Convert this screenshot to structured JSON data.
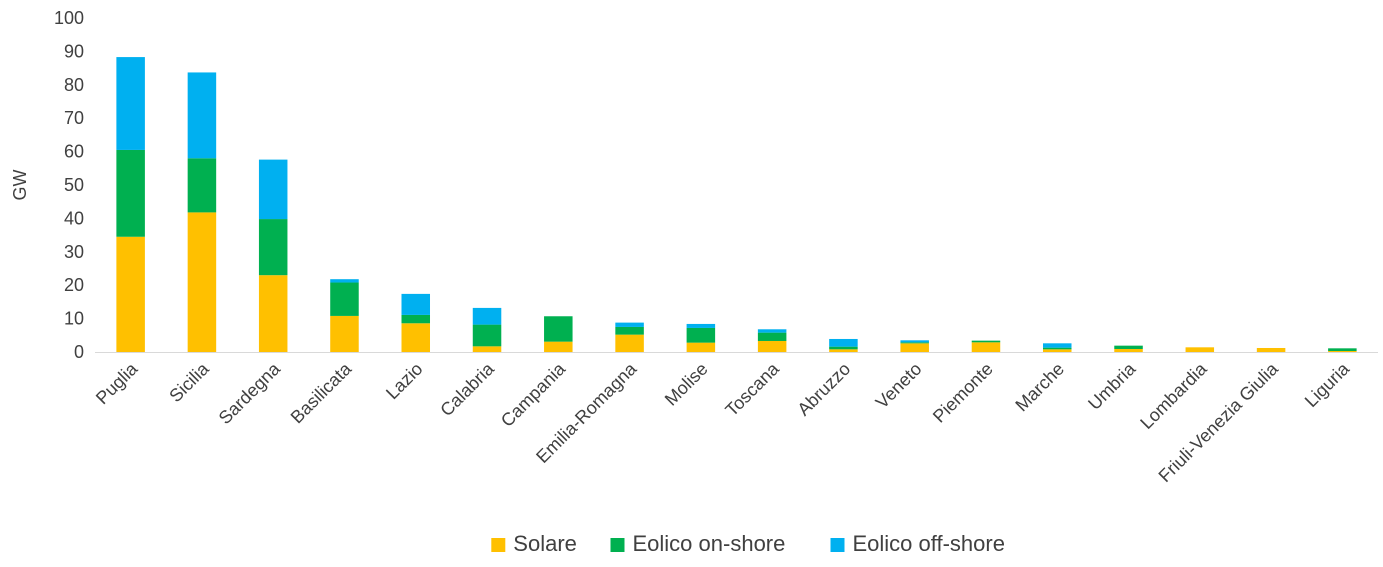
{
  "chart_data": {
    "type": "bar",
    "stacked": true,
    "title": "",
    "xlabel": "",
    "ylabel": "GW",
    "ylim": [
      0,
      100
    ],
    "yticks": [
      0,
      10,
      20,
      30,
      40,
      50,
      60,
      70,
      80,
      90,
      100
    ],
    "grid": false,
    "legend_position": "bottom",
    "categories": [
      "Puglia",
      "Sicilia",
      "Sardegna",
      "Basilicata",
      "Lazio",
      "Calabria",
      "Campania",
      "Emilia-Romagna",
      "Molise",
      "Toscana",
      "Abruzzo",
      "Veneto",
      "Piemonte",
      "Marche",
      "Umbria",
      "Lombardia",
      "Friuli-Venezia Giulia",
      "Liguria"
    ],
    "series": [
      {
        "name": "Solare",
        "color": "#FFC000",
        "values": [
          34.5,
          41.8,
          23.0,
          10.8,
          8.6,
          1.7,
          3.1,
          5.2,
          2.8,
          3.3,
          0.8,
          2.6,
          2.9,
          0.8,
          0.9,
          1.4,
          1.2,
          0.3
        ]
      },
      {
        "name": "Eolico on-shore",
        "color": "#00B050",
        "values": [
          26.0,
          16.2,
          16.8,
          10.0,
          2.5,
          6.5,
          7.6,
          2.3,
          4.4,
          2.5,
          0.8,
          0.3,
          0.5,
          0.5,
          1.0,
          0.0,
          0.0,
          0.8
        ]
      },
      {
        "name": "Eolico off-shore",
        "color": "#00B0F0",
        "values": [
          27.8,
          25.7,
          17.8,
          1.0,
          6.3,
          5.0,
          0.0,
          1.3,
          1.2,
          1.0,
          2.3,
          0.6,
          0.0,
          1.3,
          0.0,
          0.0,
          0.0,
          0.0
        ]
      }
    ]
  }
}
